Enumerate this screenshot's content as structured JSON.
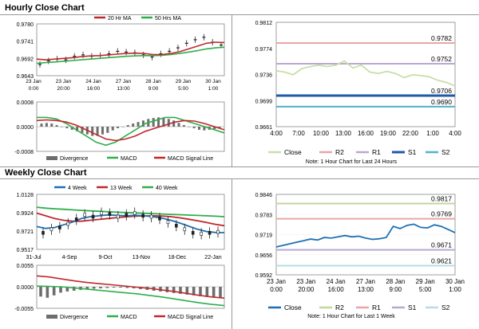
{
  "sections": {
    "hourly_title": "Hourly Close Chart",
    "weekly_title": "Weekly Close Chart"
  },
  "colors": {
    "ma_short": "#c0282d",
    "ma_long": "#2fae4b",
    "price": "#222222",
    "close_hourly": "#c9dfa8",
    "close_weekly": "#1f6fb2",
    "r2": "#e8a6a6",
    "r1": "#b9a8d1",
    "s1": "#1f5aa6",
    "s2": "#4fb3c8",
    "weekly_r2": "#e8a6a6",
    "weekly_r1": "#c4d69c",
    "weekly_s1": "#b9a8d1",
    "weekly_s2": "#b7dde6",
    "divergence": "#6d6d6d"
  },
  "chart_data": [
    {
      "id": "hourly_price",
      "type": "line",
      "legend": [
        "20 Hr MA",
        "50 Hrs MA"
      ],
      "y_ticks": [
        "0.9780",
        "0.9741",
        "0.9692",
        "0.9643"
      ],
      "ylim": [
        0.9643,
        0.979
      ],
      "x_tick_labels": [
        [
          "23 Jan",
          "0:00"
        ],
        [
          "23 Jan",
          "20:00"
        ],
        [
          "24 Jan",
          "16:00"
        ],
        [
          "27 Jan",
          "13:00"
        ],
        [
          "28 Jan",
          "9:00"
        ],
        [
          "29 Jan",
          "5:00"
        ],
        [
          "30 Jan",
          "1:00"
        ]
      ],
      "price": [
        0.9675,
        0.9685,
        0.969,
        0.9688,
        0.9698,
        0.9702,
        0.9698,
        0.97,
        0.9705,
        0.9712,
        0.971,
        0.9708,
        0.9702,
        0.9696,
        0.9705,
        0.9712,
        0.9722,
        0.9735,
        0.9745,
        0.9752,
        0.9738,
        0.973
      ],
      "ma20": [
        0.969,
        0.9688,
        0.969,
        0.9692,
        0.9694,
        0.9697,
        0.9699,
        0.97,
        0.9702,
        0.9704,
        0.9706,
        0.9707,
        0.9706,
        0.9703,
        0.9703,
        0.9706,
        0.9711,
        0.9719,
        0.9727,
        0.9735,
        0.9738,
        0.9737
      ],
      "ma50": [
        0.9678,
        0.968,
        0.9682,
        0.9684,
        0.9686,
        0.9688,
        0.969,
        0.9692,
        0.9694,
        0.9696,
        0.9698,
        0.9699,
        0.97,
        0.97,
        0.9701,
        0.9703,
        0.9706,
        0.971,
        0.9714,
        0.9719,
        0.9722,
        0.9724
      ]
    },
    {
      "id": "hourly_macd",
      "type": "bar",
      "legend": [
        "Divergence",
        "MACD",
        "MACD Signal Line"
      ],
      "y_ticks": [
        "0.0008",
        "0.0000",
        "-0.0008"
      ],
      "ylim": [
        -0.0008,
        0.0008
      ],
      "divergence": [
        0.0001,
        0.00012,
        0.0001,
        5e-05,
        0.0,
        -5e-05,
        -0.0001,
        -0.00015,
        -0.0002,
        -0.00025,
        -0.0003,
        -0.0003,
        -0.00025,
        -0.0002,
        -0.00012,
        -5e-05,
        0.0,
        5e-05,
        0.0001,
        0.00015,
        0.0002,
        0.00025,
        0.00028,
        0.0003,
        0.00028,
        0.00025,
        0.0002,
        0.00012,
        5e-05,
        0.0,
        -5e-05,
        -0.0001,
        -0.00012,
        -0.0001,
        -8e-05,
        -5e-05
      ],
      "macd": [
        0.0003,
        0.0003,
        0.00025,
        0.0001,
        -0.0001,
        -0.0003,
        -0.0005,
        -0.0006,
        -0.0005,
        -0.0003,
        -0.0001,
        0.0001,
        0.0002,
        0.0003,
        0.0003,
        0.0002,
        0.0001,
        0.0,
        -0.0001,
        -0.0002
      ],
      "signal": [
        0.0002,
        0.00022,
        0.0002,
        0.00015,
        5e-05,
        -0.0001,
        -0.00025,
        -0.0004,
        -0.00045,
        -0.0004,
        -0.0003,
        -0.00015,
        -5e-05,
        5e-05,
        0.00015,
        0.0002,
        0.00018,
        0.0001,
        0.0,
        -0.0001
      ]
    },
    {
      "id": "hourly_pivot",
      "type": "line",
      "y_ticks": [
        "0.9812",
        "0.9774",
        "0.9736",
        "0.9699",
        "0.9661"
      ],
      "ylim": [
        0.9661,
        0.9812
      ],
      "x_tick_labels": [
        "4:00",
        "7:00",
        "10:00",
        "13:00",
        "16:00",
        "19:00",
        "22:00",
        "1:00",
        "4:00"
      ],
      "levels": [
        {
          "name": "R2",
          "value": 0.9782,
          "label": "0.9782",
          "color_key": "r2"
        },
        {
          "name": "R1",
          "value": 0.9752,
          "label": "0.9752",
          "color_key": "r1"
        },
        {
          "name": "S1",
          "value": 0.9706,
          "label": "0.9706",
          "color_key": "s1"
        },
        {
          "name": "S2",
          "value": 0.969,
          "label": "0.9690",
          "color_key": "s2"
        }
      ],
      "close": [
        0.9742,
        0.974,
        0.9736,
        0.9745,
        0.9748,
        0.975,
        0.9748,
        0.975,
        0.9756,
        0.9746,
        0.975,
        0.974,
        0.9738,
        0.9741,
        0.9738,
        0.9732,
        0.9736,
        0.9735,
        0.9733,
        0.9728,
        0.9725,
        0.972
      ],
      "legend": [
        "Close",
        "R2",
        "R1",
        "S1",
        "S2"
      ],
      "note": "Note: 1 Hour Chart for Last 24 Hours"
    },
    {
      "id": "weekly_price",
      "type": "line",
      "legend": [
        "4 Week",
        "13 Week",
        "40 Week"
      ],
      "y_ticks": [
        "1.0128",
        "0.9924",
        "0.9721",
        "0.9517"
      ],
      "ylim": [
        0.9517,
        1.0128
      ],
      "x_tick_labels": [
        "31-Jul",
        "4-Sep",
        "9-Oct",
        "13-Nov",
        "18-Dec",
        "22-Jan"
      ],
      "price": [
        0.97,
        0.974,
        0.976,
        0.98,
        0.985,
        0.99,
        0.988,
        0.992,
        0.991,
        0.988,
        0.99,
        0.992,
        0.989,
        0.988,
        0.986,
        0.982,
        0.978,
        0.974,
        0.97,
        0.969,
        0.97,
        0.971
      ],
      "ma4": [
        0.977,
        0.975,
        0.976,
        0.979,
        0.982,
        0.986,
        0.988,
        0.989,
        0.99,
        0.9895,
        0.989,
        0.9895,
        0.989,
        0.988,
        0.9865,
        0.984,
        0.981,
        0.9775,
        0.974,
        0.9715,
        0.9705,
        0.9702
      ],
      "ma13": [
        0.992,
        0.989,
        0.986,
        0.984,
        0.983,
        0.983,
        0.984,
        0.985,
        0.986,
        0.987,
        0.9878,
        0.9885,
        0.9888,
        0.989,
        0.9888,
        0.988,
        0.9868,
        0.9852,
        0.9835,
        0.9815,
        0.9795,
        0.978
      ],
      "ma40": [
        0.9985,
        0.9975,
        0.9968,
        0.9962,
        0.9956,
        0.995,
        0.9945,
        0.994,
        0.9935,
        0.993,
        0.9926,
        0.9922,
        0.9918,
        0.9914,
        0.991,
        0.9906,
        0.9902,
        0.9898,
        0.9894,
        0.989,
        0.9885,
        0.988
      ]
    },
    {
      "id": "weekly_macd",
      "type": "bar",
      "legend": [
        "Divergence",
        "MACD",
        "MACD Signal Line"
      ],
      "y_ticks": [
        "0.0055",
        "0.0000",
        "-0.0055"
      ],
      "ylim": [
        -0.0055,
        0.0055
      ],
      "divergence": [
        -0.0025,
        -0.0028,
        -0.0022,
        -0.0015,
        -0.0012,
        -0.001,
        -0.0008,
        -0.0006,
        -0.0005,
        -0.0004,
        -0.0003,
        -0.0002,
        -0.0002,
        -0.0003,
        -0.0004,
        -0.0006,
        -0.0008,
        -0.001,
        -0.0012,
        -0.0014,
        -0.0016,
        -0.0018,
        -0.002,
        -0.0022,
        -0.0024,
        -0.0026,
        -0.0027,
        -0.0028
      ],
      "macd": [
        0.0002,
        0.0001,
        0.0,
        -0.0003,
        -0.0006,
        -0.0009,
        -0.0012,
        -0.0015,
        -0.0018,
        -0.0022,
        -0.0026,
        -0.0031,
        -0.0036,
        -0.0041,
        -0.0045,
        -0.0048
      ],
      "signal": [
        0.0028,
        0.0025,
        0.002,
        0.0015,
        0.0011,
        0.0008,
        0.0005,
        0.0002,
        -0.0001,
        -0.0004,
        -0.0008,
        -0.0012,
        -0.0017,
        -0.0022,
        -0.0026,
        -0.0029
      ]
    },
    {
      "id": "weekly_pivot",
      "type": "line",
      "y_ticks": [
        "0.9846",
        "0.9783",
        "0.9719",
        "0.9656",
        "0.9592"
      ],
      "ylim": [
        0.9592,
        0.9846
      ],
      "x_tick_labels": [
        [
          "23 Jan",
          "0:00"
        ],
        [
          "23 Jan",
          "20:00"
        ],
        [
          "24 Jan",
          "16:00"
        ],
        [
          "27 Jan",
          "13:00"
        ],
        [
          "28 Jan",
          "9:00"
        ],
        [
          "29 Jan",
          "5:00"
        ],
        [
          "30 Jan",
          "1:00"
        ]
      ],
      "levels": [
        {
          "name": "R2",
          "value": 0.9817,
          "label": "0.9817",
          "color_key": "weekly_r1"
        },
        {
          "name": "R1",
          "value": 0.9769,
          "label": "0.9769",
          "color_key": "weekly_r2"
        },
        {
          "name": "S1",
          "value": 0.9671,
          "label": "0.9671",
          "color_key": "weekly_s1"
        },
        {
          "name": "S2",
          "value": 0.9621,
          "label": "0.9621",
          "color_key": "weekly_s2"
        }
      ],
      "close": [
        0.968,
        0.9685,
        0.969,
        0.9695,
        0.97,
        0.9705,
        0.9702,
        0.971,
        0.9708,
        0.9712,
        0.9716,
        0.9712,
        0.9714,
        0.9708,
        0.9704,
        0.9706,
        0.971,
        0.9745,
        0.9738,
        0.9748,
        0.9752,
        0.9742,
        0.974,
        0.975,
        0.9745,
        0.9735,
        0.9725
      ],
      "legend": [
        "Close",
        "R2",
        "R1",
        "S1",
        "S2"
      ],
      "note": "Note: 1 Hour Chart for Last 1 Week"
    }
  ]
}
